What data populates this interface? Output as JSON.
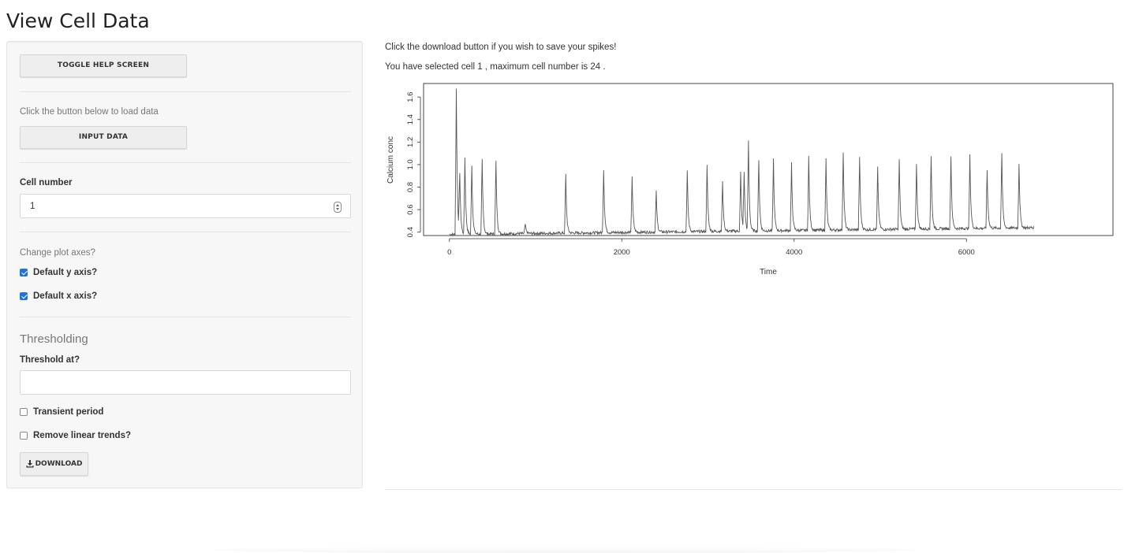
{
  "page": {
    "title": "View Cell Data"
  },
  "sidebar": {
    "toggle_help_label": "TOGGLE HELP SCREEN",
    "load_hint": "Click the button below to load data",
    "input_data_label": "INPUT DATA",
    "cell_number_label": "Cell number",
    "cell_number_value": "1",
    "axes_hint": "Change plot axes?",
    "default_y_label": "Default y axis?",
    "default_y_checked": true,
    "default_x_label": "Default x axis?",
    "default_x_checked": true,
    "thresholding_title": "Thresholding",
    "threshold_label": "Threshold at?",
    "threshold_value": "",
    "transient_label": "Transient period",
    "transient_checked": false,
    "remove_trends_label": "Remove linear trends?",
    "remove_trends_checked": false,
    "download_label": "DOWNLOAD",
    "download_icon": "download-icon"
  },
  "main": {
    "download_hint": "Click the download button if you wish to save your spikes!",
    "selection_text": "You have selected cell 1 , maximum cell number is 24 ."
  },
  "chart_data": {
    "type": "line",
    "title": "",
    "xlabel": "Time",
    "ylabel": "Calcium conc",
    "xlim": [
      -300,
      7700
    ],
    "ylim": [
      0.37,
      1.72
    ],
    "xticks": [
      0,
      2000,
      4000,
      6000
    ],
    "yticks": [
      0.4,
      0.6,
      0.8,
      1.0,
      1.2,
      1.4,
      1.6
    ],
    "ytick_labels": [
      "0.4",
      "0.6",
      "0.8",
      "1.0",
      "1.2",
      "1.4",
      "1.6"
    ],
    "series": [
      {
        "color": "#555555",
        "x_range": [
          0,
          6780
        ],
        "baseline_start": 0.38,
        "baseline_end": 0.44,
        "spikes": [
          [
            80,
            1.67
          ],
          [
            120,
            0.9
          ],
          [
            180,
            1.06
          ],
          [
            260,
            1.0
          ],
          [
            380,
            1.04
          ],
          [
            540,
            1.03
          ],
          [
            880,
            0.47
          ],
          [
            1350,
            0.91
          ],
          [
            1790,
            0.96
          ],
          [
            2120,
            0.9
          ],
          [
            2400,
            0.76
          ],
          [
            2760,
            0.94
          ],
          [
            2990,
            0.99
          ],
          [
            3170,
            0.86
          ],
          [
            3380,
            0.93
          ],
          [
            3420,
            0.92
          ],
          [
            3470,
            1.2
          ],
          [
            3590,
            1.05
          ],
          [
            3760,
            1.05
          ],
          [
            3970,
            1.01
          ],
          [
            4170,
            1.07
          ],
          [
            4370,
            1.05
          ],
          [
            4570,
            1.12
          ],
          [
            4760,
            1.07
          ],
          [
            4970,
            0.97
          ],
          [
            5220,
            1.04
          ],
          [
            5420,
            1.0
          ],
          [
            5590,
            1.08
          ],
          [
            5820,
            1.07
          ],
          [
            6040,
            1.08
          ],
          [
            6240,
            0.95
          ],
          [
            6410,
            1.1
          ],
          [
            6610,
            1.01
          ]
        ]
      }
    ]
  }
}
